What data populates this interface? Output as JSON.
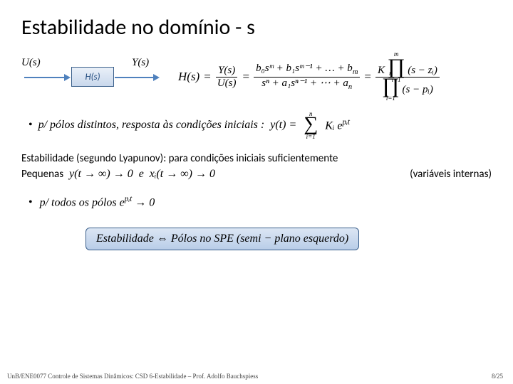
{
  "title": "Estabilidade no domínio - s",
  "block": {
    "u": "U(s)",
    "h": "H(s)",
    "y": "Y(s)"
  },
  "tf": {
    "lhs": "H(s)",
    "eq": "=",
    "rhs1_num": "Y(s)",
    "rhs1_den": "U(s)",
    "rhs2_num": "b₀sᵐ + b₁sᵐ⁻¹ + … + b",
    "rhs2_num_last_sub": "m",
    "rhs2_den": "sⁿ + a₁sⁿ⁻¹ + ⋯ + a",
    "rhs2_den_last_sub": "n",
    "K": "K",
    "prod_top_num": "m",
    "prod_bot_num": "i=1",
    "num_factor": "(s − zᵢ)",
    "prod_top_den": "n",
    "prod_bot_den": "i=1",
    "den_factor": "(s − pᵢ)"
  },
  "bullet1": {
    "dot": "•",
    "text": "p/ pólos distintos, resposta às condições iniciais :",
    "y_eq": "y(t) =",
    "sum_top": "n",
    "sum_bot": "i=1",
    "term": "Kᵢ e",
    "exp": "pᵢt"
  },
  "lyapunov": {
    "line1": "Estabilidade (segundo Lyapunov): para condições iniciais suficientemente",
    "pequenas": "Pequenas",
    "cond1": "y(t → ∞) → 0",
    "e": "e",
    "cond2": "xᵢ(t → ∞) → 0",
    "vars": "(variáveis internas)"
  },
  "bullet2": {
    "dot": "•",
    "text": "p/ todos os pólos e",
    "exp": "pᵢt",
    "arrow": "→ 0"
  },
  "highlight": {
    "text": "Estabilidade ⇔ Pólos no SPE (semi − plano esquerdo)"
  },
  "footer": {
    "left": "UnB/ENE0077 Controle de Sistemas Dinâmicos: CSD 6-Estabilidade – Prof. Adolfo Bauchspiess",
    "right": "8/25"
  },
  "colors": {
    "arrow": "#4f81bd",
    "box_border": "#3a5f8b",
    "box_text": "#1f497d"
  }
}
